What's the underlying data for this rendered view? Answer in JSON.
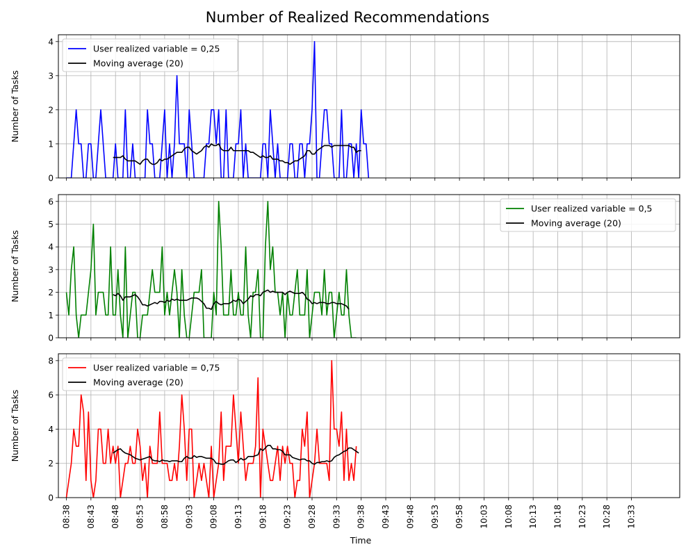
{
  "title": "Number of Realized Recommendations",
  "xlabel": "Time",
  "x_tick_labels": [
    "08:38",
    "08:43",
    "08:48",
    "08:53",
    "08:58",
    "09:03",
    "09:08",
    "09:13",
    "09:18",
    "09:23",
    "09:28",
    "09:33",
    "09:38",
    "09:43",
    "09:48",
    "09:53",
    "09:58",
    "10:03",
    "10:08",
    "10:13",
    "10:18",
    "10:23",
    "10:28",
    "10:33"
  ],
  "chart_data": [
    {
      "type": "line",
      "ylabel": "Number of Tasks",
      "ylim": [
        0,
        4.2
      ],
      "yticks": [
        0,
        1,
        2,
        3,
        4
      ],
      "legend_position": "top-left",
      "grid": true,
      "x_start": "08:38",
      "x_step_minutes": 0.5,
      "series": [
        {
          "name": "User realized variable = 0,25",
          "color": "#0000ff",
          "values": [
            0,
            0,
            0,
            1,
            2,
            1,
            1,
            0,
            0,
            1,
            1,
            0,
            0,
            1,
            2,
            1,
            0,
            0,
            0,
            0,
            1,
            0,
            0,
            0,
            2,
            0,
            0,
            1,
            0,
            0,
            0,
            0,
            0,
            2,
            1,
            1,
            0,
            0,
            0,
            1,
            2,
            0,
            1,
            0,
            1,
            3,
            1,
            1,
            1,
            0,
            2,
            1,
            0,
            0,
            0,
            0,
            0,
            1,
            1,
            2,
            2,
            1,
            2,
            0,
            0,
            2,
            0,
            0,
            0,
            1,
            1,
            2,
            0,
            1,
            0,
            0,
            0,
            0,
            0,
            0,
            1,
            1,
            0,
            2,
            1,
            0,
            1,
            0,
            0,
            0,
            0,
            1,
            1,
            0,
            0,
            1,
            1,
            0,
            1,
            1,
            2,
            4,
            0,
            0,
            1,
            2,
            2,
            1,
            1,
            0,
            0,
            0,
            2,
            0,
            0,
            1,
            1,
            0,
            1,
            0,
            2,
            1,
            1,
            0
          ]
        },
        {
          "name": "Moving average (20)",
          "color": "#000000",
          "start_index": 19,
          "values": [
            0.6,
            0.6,
            0.6,
            0.6,
            0.65,
            0.55,
            0.5,
            0.5,
            0.5,
            0.5,
            0.45,
            0.4,
            0.5,
            0.55,
            0.55,
            0.45,
            0.4,
            0.4,
            0.45,
            0.55,
            0.5,
            0.55,
            0.55,
            0.6,
            0.65,
            0.7,
            0.75,
            0.75,
            0.75,
            0.85,
            0.9,
            0.9,
            0.8,
            0.75,
            0.7,
            0.75,
            0.8,
            0.9,
            0.95,
            0.9,
            1.0,
            0.95,
            0.95,
            1.0,
            0.85,
            0.8,
            0.8,
            0.8,
            0.9,
            0.8,
            0.8,
            0.8,
            0.8,
            0.8,
            0.8,
            0.8,
            0.75,
            0.75,
            0.7,
            0.65,
            0.6,
            0.65,
            0.6,
            0.6,
            0.65,
            0.55,
            0.55,
            0.55,
            0.5,
            0.5,
            0.45,
            0.45,
            0.4,
            0.45,
            0.5,
            0.5,
            0.55,
            0.6,
            0.65,
            0.8,
            0.8,
            0.7,
            0.7,
            0.8,
            0.85,
            0.9,
            0.95,
            0.95,
            0.95,
            0.9,
            0.95,
            0.95,
            0.95,
            0.95,
            0.95,
            0.95,
            0.95,
            0.9,
            0.9,
            0.75,
            0.8,
            0.8
          ]
        }
      ]
    },
    {
      "type": "line",
      "ylabel": "Number of Tasks",
      "ylim": [
        0,
        6.3
      ],
      "yticks": [
        0,
        1,
        2,
        3,
        4,
        5,
        6
      ],
      "legend_position": "top-right",
      "grid": true,
      "x_start": "08:38",
      "x_step_minutes": 0.5,
      "series": [
        {
          "name": "User realized variable = 0,5",
          "color": "#008000",
          "values": [
            2,
            1,
            3,
            4,
            1,
            0,
            1,
            1,
            1,
            2,
            3,
            5,
            1,
            2,
            2,
            2,
            1,
            1,
            4,
            1,
            1,
            3,
            1,
            0,
            4,
            0,
            1,
            2,
            2,
            0,
            0,
            1,
            1,
            1,
            2,
            3,
            2,
            2,
            2,
            4,
            1,
            2,
            1,
            2,
            3,
            2,
            0,
            3,
            1,
            0,
            0,
            1,
            2,
            2,
            2,
            3,
            0,
            0,
            0,
            0,
            2,
            1,
            6,
            4,
            1,
            1,
            1,
            3,
            1,
            1,
            2,
            1,
            1,
            4,
            1,
            0,
            2,
            2,
            3,
            0,
            0,
            4,
            6,
            3,
            4,
            2,
            2,
            1,
            2,
            0,
            2,
            1,
            1,
            2,
            3,
            1,
            1,
            1,
            3,
            0,
            1,
            2,
            2,
            2,
            1,
            3,
            1,
            2,
            2,
            0,
            1,
            2,
            1,
            1,
            3,
            1,
            0,
            0,
            0
          ]
        },
        {
          "name": "Moving average (20)",
          "color": "#000000",
          "start_index": 19,
          "values": [
            1.9,
            1.85,
            1.95,
            1.85,
            1.65,
            1.8,
            1.8,
            1.8,
            1.85,
            1.9,
            1.8,
            1.65,
            1.45,
            1.45,
            1.4,
            1.45,
            1.5,
            1.55,
            1.5,
            1.6,
            1.6,
            1.55,
            1.65,
            1.6,
            1.7,
            1.65,
            1.7,
            1.65,
            1.65,
            1.65,
            1.65,
            1.7,
            1.75,
            1.75,
            1.75,
            1.7,
            1.6,
            1.5,
            1.3,
            1.3,
            1.25,
            1.5,
            1.6,
            1.5,
            1.45,
            1.5,
            1.5,
            1.5,
            1.55,
            1.65,
            1.6,
            1.7,
            1.65,
            1.5,
            1.6,
            1.7,
            1.85,
            1.8,
            1.9,
            1.9,
            1.85,
            2.0,
            2.05,
            2.1,
            2.0,
            2.05,
            2.0,
            2.0,
            2.0,
            2.0,
            1.9,
            2.0,
            2.05,
            2.0,
            1.95,
            1.95,
            1.95,
            2.0,
            1.9,
            1.7,
            1.65,
            1.5,
            1.55,
            1.5,
            1.55,
            1.55,
            1.55,
            1.5,
            1.5,
            1.55,
            1.55,
            1.5,
            1.5,
            1.5,
            1.45,
            1.4,
            1.25
          ]
        }
      ]
    },
    {
      "type": "line",
      "ylabel": "Number of Tasks",
      "ylim": [
        0,
        8.4
      ],
      "yticks": [
        0,
        2,
        4,
        6,
        8
      ],
      "legend_position": "top-left",
      "grid": true,
      "x_start": "08:38",
      "x_step_minutes": 0.5,
      "series": [
        {
          "name": "User realized variable = 0,75",
          "color": "#ff0000",
          "values": [
            0,
            1,
            2,
            4,
            3,
            3,
            6,
            5,
            1,
            5,
            1,
            0,
            1,
            4,
            4,
            2,
            2,
            4,
            2,
            3,
            2,
            3,
            0,
            1,
            2,
            2,
            3,
            2,
            2,
            4,
            3,
            1,
            2,
            0,
            3,
            2,
            2,
            2,
            5,
            2,
            2,
            2,
            1,
            1,
            2,
            1,
            3,
            6,
            4,
            1,
            4,
            4,
            0,
            1,
            2,
            1,
            2,
            1,
            0,
            3,
            0,
            1,
            2,
            5,
            1,
            3,
            3,
            3,
            6,
            4,
            2,
            5,
            3,
            1,
            2,
            2,
            2,
            3,
            7,
            0,
            4,
            3,
            2,
            1,
            1,
            2,
            3,
            1,
            3,
            2,
            3,
            2,
            2,
            0,
            1,
            1,
            4,
            3,
            5,
            0,
            1,
            2,
            4,
            2,
            2,
            2,
            2,
            1,
            8,
            4,
            4,
            3,
            5,
            1,
            4,
            1,
            2,
            1,
            3
          ]
        },
        {
          "name": "Moving average (20)",
          "color": "#000000",
          "start_index": 19,
          "values": [
            2.6,
            2.7,
            2.8,
            2.85,
            2.7,
            2.6,
            2.55,
            2.5,
            2.4,
            2.3,
            2.25,
            2.2,
            2.25,
            2.3,
            2.35,
            2.4,
            2.2,
            2.15,
            2.15,
            2.1,
            2.2,
            2.15,
            2.15,
            2.1,
            2.15,
            2.15,
            2.15,
            2.1,
            2.1,
            2.3,
            2.4,
            2.3,
            2.3,
            2.45,
            2.35,
            2.4,
            2.4,
            2.35,
            2.3,
            2.3,
            2.3,
            2.2,
            2.0,
            2.0,
            1.95,
            1.95,
            2.05,
            2.15,
            2.2,
            2.2,
            2.05,
            2.15,
            2.3,
            2.2,
            2.25,
            2.4,
            2.4,
            2.4,
            2.45,
            2.5,
            2.85,
            2.75,
            2.9,
            3.05,
            3.05,
            2.85,
            2.85,
            2.8,
            2.8,
            2.7,
            2.5,
            2.5,
            2.5,
            2.35,
            2.3,
            2.25,
            2.2,
            2.25,
            2.25,
            2.15,
            2.15,
            2.0,
            1.95,
            2.05,
            2.05,
            2.1,
            2.1,
            2.15,
            2.1,
            2.15,
            2.35,
            2.45,
            2.5,
            2.6,
            2.7,
            2.75,
            2.9,
            2.9,
            2.8,
            2.7,
            2.6
          ]
        }
      ]
    }
  ]
}
